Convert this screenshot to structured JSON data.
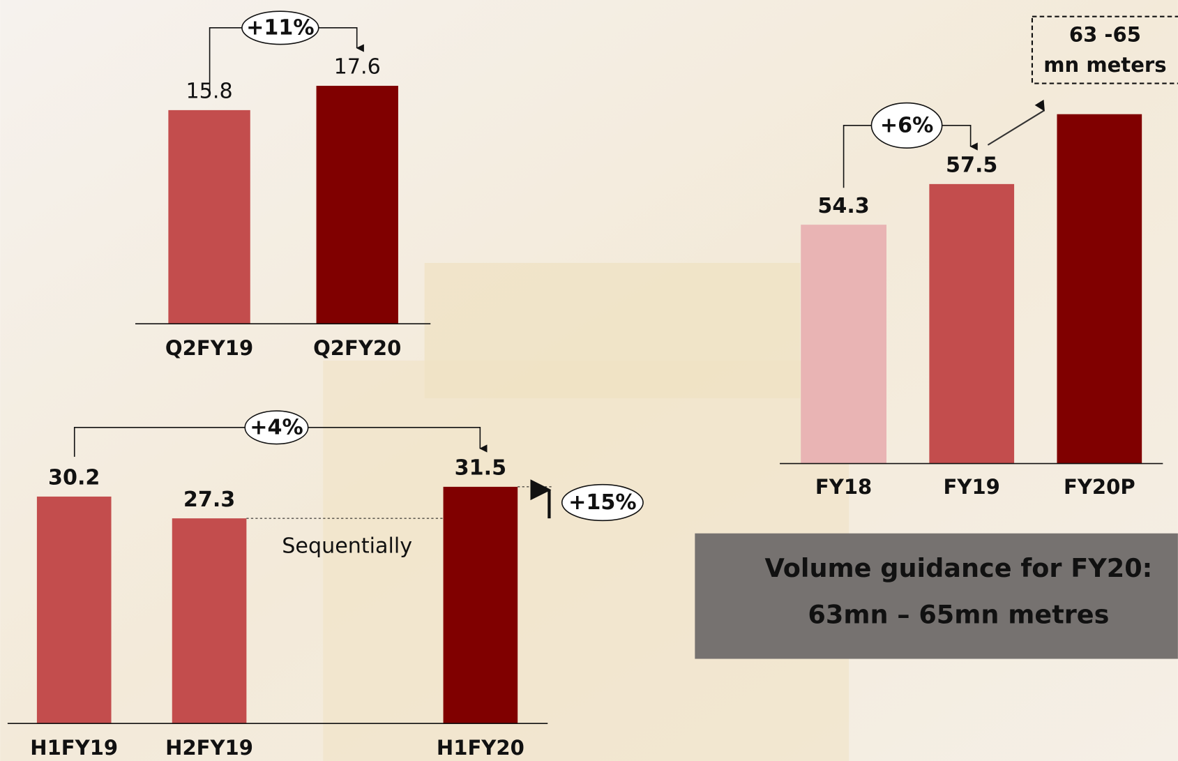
{
  "chart_data": [
    {
      "type": "bar",
      "categories": [
        "Q2FY19",
        "Q2FY20"
      ],
      "values": [
        15.8,
        17.6
      ],
      "colors": [
        "#c34d4d",
        "#800000"
      ],
      "ylim": [
        0,
        18
      ],
      "annotations": [
        "+11%"
      ]
    },
    {
      "type": "bar",
      "categories": [
        "H1FY19",
        "H2FY19",
        "H1FY20"
      ],
      "values": [
        30.2,
        27.3,
        31.5
      ],
      "colors": [
        "#c34d4d",
        "#c34d4d",
        "#800000"
      ],
      "ylim": [
        0,
        32
      ],
      "annotations": [
        "+4%",
        "Sequentially",
        "+15%"
      ]
    },
    {
      "type": "bar",
      "categories": [
        "FY18",
        "FY19",
        "FY20P"
      ],
      "values": [
        54.3,
        57.5,
        63
      ],
      "value_labels": [
        "54.3",
        "57.5",
        null
      ],
      "colors": [
        "#e9b4b4",
        "#c34d4d",
        "#800000"
      ],
      "ylim": [
        35.5,
        63
      ],
      "annotations": [
        "+6%",
        "63 -65",
        "mn meters",
        "Volume guidance for FY20:",
        "63mn – 65mn metres"
      ]
    }
  ]
}
